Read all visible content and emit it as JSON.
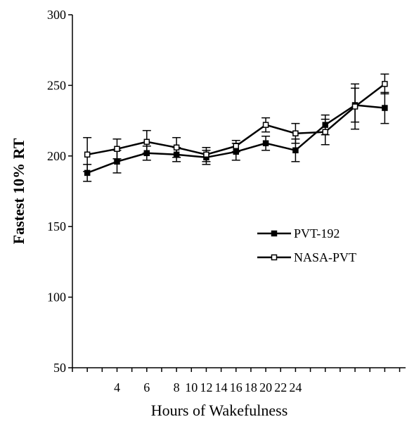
{
  "chart_data": {
    "type": "line",
    "xlabel": "Hours of Wakefulness",
    "ylabel": "Fastest 10% RT",
    "ylim": [
      50,
      300
    ],
    "yticks": [
      50,
      100,
      150,
      200,
      250,
      300
    ],
    "xtick_labels": [
      "4",
      "6",
      "8",
      "10",
      "12",
      "14",
      "16",
      "18",
      "20",
      "22",
      "24"
    ],
    "grid": false,
    "legend_position": "right-middle",
    "series": [
      {
        "name": "PVT-192",
        "marker": "filled-square",
        "x": [
          1,
          3,
          5,
          7,
          9,
          11,
          13,
          15,
          17,
          19,
          21
        ],
        "y": [
          188,
          196,
          202,
          201,
          199,
          203,
          209,
          204,
          222,
          236,
          234
        ],
        "err": [
          6,
          8,
          5,
          5,
          5,
          6,
          5,
          8,
          7,
          12,
          11
        ]
      },
      {
        "name": "NASA-PVT",
        "marker": "open-square",
        "x": [
          1,
          3,
          5,
          7,
          9,
          11,
          13,
          15,
          17,
          19,
          21
        ],
        "y": [
          201,
          205,
          210,
          206,
          201,
          207,
          222,
          216,
          217,
          235,
          251
        ],
        "err": [
          12,
          7,
          8,
          7,
          5,
          4,
          5,
          7,
          9,
          16,
          7
        ]
      }
    ]
  }
}
